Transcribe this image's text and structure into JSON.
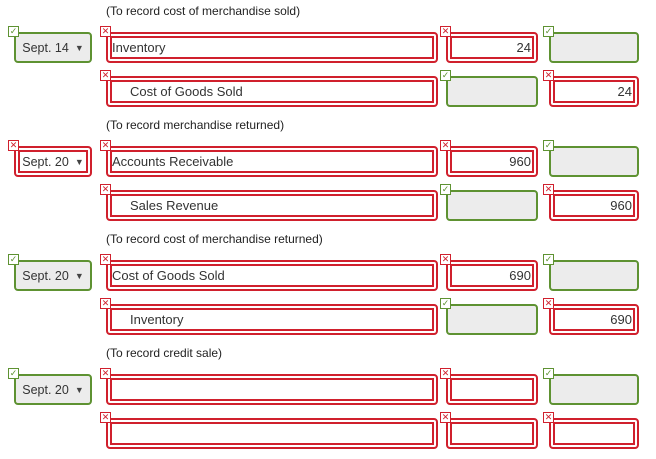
{
  "entries": [
    {
      "note": "(To record cost of merchandise sold)",
      "date": "Sept. 14",
      "date_status": "correct",
      "lines": [
        {
          "account": "Inventory",
          "account_status": "incorrect",
          "debit": "24",
          "debit_status": "incorrect",
          "credit": "",
          "credit_status": "correct"
        },
        {
          "account": "Cost of Goods Sold",
          "account_status": "incorrect",
          "debit": "",
          "debit_status": "correct",
          "credit": "24",
          "credit_status": "incorrect"
        }
      ]
    },
    {
      "note": "(To record merchandise returned)",
      "date": "Sept. 20",
      "date_status": "incorrect",
      "lines": [
        {
          "account": "Accounts Receivable",
          "account_status": "incorrect",
          "debit": "960",
          "debit_status": "incorrect",
          "credit": "",
          "credit_status": "correct"
        },
        {
          "account": "Sales Revenue",
          "account_status": "incorrect",
          "debit": "",
          "debit_status": "correct",
          "credit": "960",
          "credit_status": "incorrect"
        }
      ]
    },
    {
      "note": "(To record cost of merchandise returned)",
      "date": "Sept. 20",
      "date_status": "correct",
      "lines": [
        {
          "account": "Cost of Goods Sold",
          "account_status": "incorrect",
          "debit": "690",
          "debit_status": "incorrect",
          "credit": "",
          "credit_status": "correct"
        },
        {
          "account": "Inventory",
          "account_status": "incorrect",
          "debit": "",
          "debit_status": "correct",
          "credit": "690",
          "credit_status": "incorrect"
        }
      ]
    },
    {
      "note": "(To record credit sale)",
      "date": "Sept. 20",
      "date_status": "correct",
      "lines": [
        {
          "account": "",
          "account_status": "incorrect",
          "debit": "",
          "debit_status": "incorrect",
          "credit": "",
          "credit_status": "correct"
        },
        {
          "account": "",
          "account_status": "incorrect",
          "debit": "",
          "debit_status": "incorrect",
          "credit": "",
          "credit_status": "incorrect"
        }
      ]
    }
  ],
  "icons": {
    "correct": "check-icon",
    "incorrect": "x-icon",
    "dropdown": "caret-down-icon"
  },
  "colors": {
    "correct": "#5e9232",
    "incorrect": "#d0202d",
    "disabled_fill": "#ececec"
  }
}
